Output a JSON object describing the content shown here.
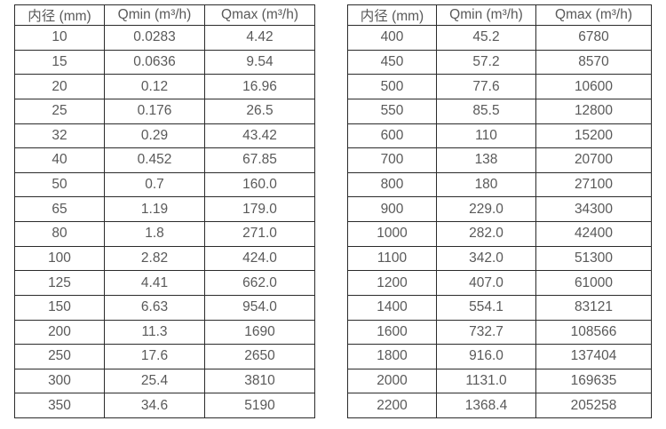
{
  "colors": {
    "background": "#ffffff",
    "border": "#2b2b2b",
    "text": "#595959"
  },
  "tables": [
    {
      "id": "flow-table-small-diameters",
      "headers": [
        "内径 (mm)",
        "Qmin (m³/h)",
        "Qmax (m³/h)"
      ],
      "rows": [
        [
          "10",
          "0.0283",
          "4.42"
        ],
        [
          "15",
          "0.0636",
          "9.54"
        ],
        [
          "20",
          "0.12",
          "16.96"
        ],
        [
          "25",
          "0.176",
          "26.5"
        ],
        [
          "32",
          "0.29",
          "43.42"
        ],
        [
          "40",
          "0.452",
          "67.85"
        ],
        [
          "50",
          "0.7",
          "160.0"
        ],
        [
          "65",
          "1.19",
          "179.0"
        ],
        [
          "80",
          "1.8",
          "271.0"
        ],
        [
          "100",
          "2.82",
          "424.0"
        ],
        [
          "125",
          "4.41",
          "662.0"
        ],
        [
          "150",
          "6.63",
          "954.0"
        ],
        [
          "200",
          "11.3",
          "1690"
        ],
        [
          "250",
          "17.6",
          "2650"
        ],
        [
          "300",
          "25.4",
          "3810"
        ],
        [
          "350",
          "34.6",
          "5190"
        ]
      ]
    },
    {
      "id": "flow-table-large-diameters",
      "headers": [
        "内径 (mm)",
        "Qmin (m³/h)",
        "Qmax (m³/h)"
      ],
      "rows": [
        [
          "400",
          "45.2",
          "6780"
        ],
        [
          "450",
          "57.2",
          "8570"
        ],
        [
          "500",
          "77.6",
          "10600"
        ],
        [
          "550",
          "85.5",
          "12800"
        ],
        [
          "600",
          "110",
          "15200"
        ],
        [
          "700",
          "138",
          "20700"
        ],
        [
          "800",
          "180",
          "27100"
        ],
        [
          "900",
          "229.0",
          "34300"
        ],
        [
          "1000",
          "282.0",
          "42400"
        ],
        [
          "1100",
          "342.0",
          "51300"
        ],
        [
          "1200",
          "407.0",
          "61000"
        ],
        [
          "1400",
          "554.1",
          "83121"
        ],
        [
          "1600",
          "732.7",
          "108566"
        ],
        [
          "1800",
          "916.0",
          "137404"
        ],
        [
          "2000",
          "1131.0",
          "169635"
        ],
        [
          "2200",
          "1368.4",
          "205258"
        ]
      ]
    }
  ]
}
